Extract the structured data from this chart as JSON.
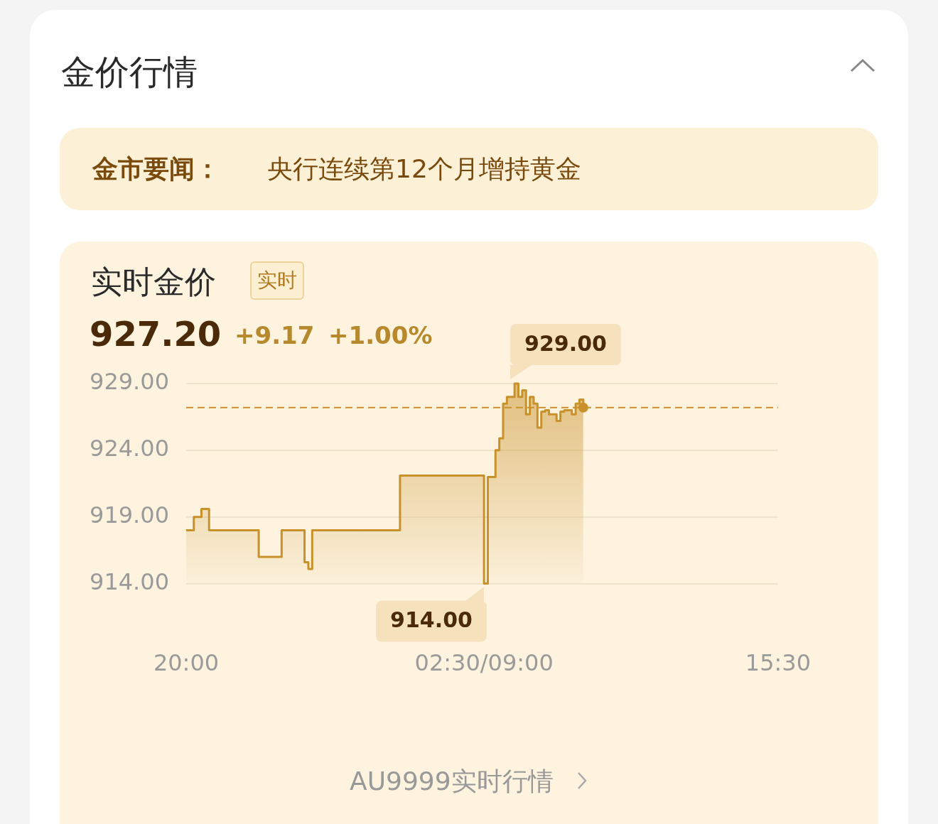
{
  "chart_data": {
    "type": "area",
    "title": "金价行情",
    "subtitle": "实时金价",
    "categories": [
      "20:00",
      null,
      null,
      null,
      null,
      null,
      null,
      null,
      null,
      null,
      null,
      null,
      null,
      null,
      null,
      null,
      null,
      null,
      null,
      null,
      null,
      null,
      null,
      null,
      null,
      null,
      null,
      null,
      null,
      null,
      null,
      null,
      null,
      null,
      null,
      null,
      null,
      null,
      null,
      null,
      null,
      null,
      null,
      null,
      null,
      null,
      null,
      null,
      null,
      null,
      null,
      null,
      null,
      null,
      null,
      null,
      null,
      null,
      null,
      null,
      null,
      null,
      null,
      null,
      null,
      null,
      null,
      null,
      null,
      null,
      null,
      null,
      null,
      null,
      null,
      null,
      null,
      null,
      "02:30/09:00",
      null,
      null,
      null,
      null,
      null,
      null,
      null,
      null,
      null,
      null,
      null,
      null,
      null,
      null,
      null,
      null,
      null,
      null,
      null,
      null,
      null,
      null,
      null,
      null,
      null,
      null,
      null,
      null,
      null,
      null,
      null,
      null,
      null,
      null,
      null,
      null,
      null,
      null,
      null,
      null,
      null,
      null,
      null,
      null,
      null,
      null,
      null,
      null,
      null,
      null,
      null,
      null,
      null,
      null,
      null,
      null,
      null,
      null,
      null,
      null,
      null,
      null,
      null,
      null,
      null,
      null,
      null,
      null,
      null,
      null,
      null,
      null,
      null,
      null,
      null,
      null,
      "15:30"
    ],
    "ylim": [
      914,
      929
    ],
    "yticks": [
      {
        "value": 914,
        "label": "914.00"
      },
      {
        "value": 919,
        "label": "919.00"
      },
      {
        "value": 924,
        "label": "924.00"
      },
      {
        "value": 929,
        "label": "929.00"
      }
    ],
    "grid": "y",
    "legend": false,
    "marker": "none",
    "series": [
      {
        "color": "#c8912a",
        "values": [
          918.0,
          918.0,
          919.0,
          919.0,
          919.6,
          919.6,
          918.0,
          918.0,
          918.0,
          918.0,
          918.0,
          918.0,
          918.0,
          918.0,
          918.0,
          918.0,
          918.0,
          918.0,
          918.0,
          916.0,
          916.0,
          916.0,
          916.0,
          916.0,
          916.0,
          918.0,
          918.0,
          918.0,
          918.0,
          918.0,
          918.0,
          915.6,
          915.1,
          918.0,
          918.0,
          918.0,
          918.0,
          918.0,
          918.0,
          918.0,
          918.0,
          918.0,
          918.0,
          918.0,
          918.0,
          918.0,
          918.0,
          918.0,
          918.0,
          918.0,
          918.0,
          918.0,
          918.0,
          918.0,
          918.0,
          918.0,
          922.1,
          922.1,
          922.1,
          922.1,
          922.1,
          922.1,
          922.1,
          922.1,
          922.1,
          922.1,
          922.1,
          922.1,
          922.1,
          922.1,
          922.1,
          922.1,
          922.1,
          922.1,
          922.1,
          922.1,
          922.1,
          922.1,
          914.0,
          922.0,
          922.0,
          924.0,
          924.9,
          927.5,
          928.0,
          928.0,
          929.0,
          928.0,
          928.5,
          926.7,
          928.0,
          927.5,
          925.7,
          926.9,
          927.0,
          926.7,
          926.7,
          926.2,
          926.9,
          927.0,
          927.0,
          926.7,
          927.5,
          927.8,
          927.2,
          null,
          null,
          null,
          null,
          null,
          null,
          null,
          null,
          null,
          null,
          null,
          null,
          null,
          null,
          null,
          null,
          null,
          null,
          null,
          null,
          null,
          null,
          null,
          null,
          null,
          null,
          null,
          null,
          null,
          null,
          null,
          null,
          null,
          null,
          null,
          null,
          null,
          null,
          null,
          null,
          null,
          null,
          null,
          null,
          null,
          null,
          null,
          null,
          null,
          null,
          null
        ]
      }
    ],
    "ref_lines": [
      {
        "axis": "y",
        "value": 927.2,
        "color": "#c8912a",
        "line_style": "dashed"
      }
    ],
    "annotations": [
      "金市要闻：",
      "央行连续第12个月增持黄金",
      "实时",
      "927.20",
      "+9.17",
      "+1.00%",
      "AU9999实时行情",
      "929.00",
      "914.00"
    ]
  }
}
